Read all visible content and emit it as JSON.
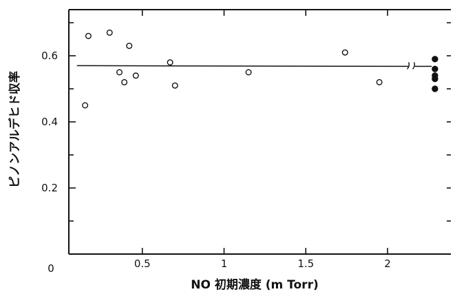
{
  "chart_data": {
    "type": "scatter",
    "xlabel": "NO 初期濃度 (m Torr)",
    "ylabel": "ピノンアルデヒド収率",
    "origin_label": "0",
    "xlim": [
      0,
      2.45
    ],
    "ylim": [
      0,
      0.76
    ],
    "x_ticks": [
      {
        "value": 0.5,
        "label": "0.5"
      },
      {
        "value": 1,
        "label": "1"
      },
      {
        "value": 1.5,
        "label": "1.5"
      },
      {
        "value": 2,
        "label": "2"
      }
    ],
    "y_ticks": [
      {
        "value": 0.2,
        "label": "0.2"
      },
      {
        "value": 0.4,
        "label": "0.4"
      },
      {
        "value": 0.6,
        "label": "0.6"
      }
    ],
    "series": [
      {
        "marker": "open-circle",
        "points": [
          [
            0.15,
            0.45
          ],
          [
            0.17,
            0.66
          ],
          [
            0.3,
            0.67
          ],
          [
            0.36,
            0.55
          ],
          [
            0.39,
            0.52
          ],
          [
            0.42,
            0.63
          ],
          [
            0.46,
            0.54
          ],
          [
            0.67,
            0.58
          ],
          [
            0.7,
            0.51
          ],
          [
            1.15,
            0.55
          ],
          [
            1.74,
            0.61
          ],
          [
            1.95,
            0.52
          ]
        ]
      },
      {
        "marker": "filled-circle",
        "points": [
          [
            2.29,
            0.59
          ],
          [
            2.29,
            0.56
          ],
          [
            2.29,
            0.54
          ],
          [
            2.29,
            0.53
          ],
          [
            2.29,
            0.5
          ]
        ]
      }
    ],
    "reference_line": {
      "x_start": 0.1,
      "x_end": 2.27,
      "y": 0.57
    },
    "axis_break_x": 2.15
  }
}
